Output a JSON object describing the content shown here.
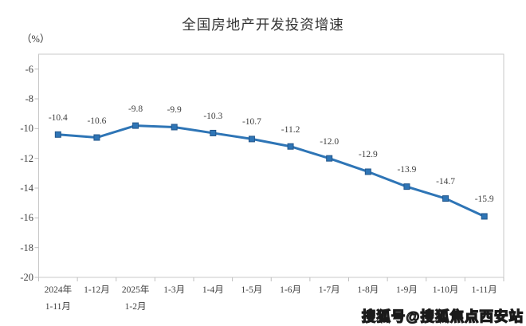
{
  "chart": {
    "title": "全国房地产开发投资增速",
    "unit_label": "（%）",
    "watermark": "搜狐号@搜狐焦点西安站",
    "colors": {
      "line": "#2E75B6",
      "marker_fill": "#2E75B6",
      "marker_stroke": "#24578B",
      "plot_border": "#C8C8C8",
      "tick": "#BFBFBF",
      "axis_text": "#404040",
      "title_text": "#333333"
    }
  },
  "chart_data": {
    "type": "line",
    "title": "全国房地产开发投资增速",
    "ylabel": "（%）",
    "categories": [
      "2024年 1-11月",
      "1-12月",
      "2025年 1-2月",
      "1-3月",
      "1-4月",
      "1-5月",
      "1-6月",
      "1-7月",
      "1-8月",
      "1-9月",
      "1-10月",
      "1-11月"
    ],
    "category_lines": [
      [
        "2024年",
        "1-11月"
      ],
      [
        "1-12月"
      ],
      [
        "2025年",
        "1-2月"
      ],
      [
        "1-3月"
      ],
      [
        "1-4月"
      ],
      [
        "1-5月"
      ],
      [
        "1-6月"
      ],
      [
        "1-7月"
      ],
      [
        "1-8月"
      ],
      [
        "1-9月"
      ],
      [
        "1-10月"
      ],
      [
        "1-11月"
      ]
    ],
    "values": [
      -10.4,
      -10.6,
      -9.8,
      -9.9,
      -10.3,
      -10.7,
      -11.2,
      -12.0,
      -12.9,
      -13.9,
      -14.7,
      -15.9
    ],
    "data_labels": [
      "-10.4",
      "-10.6",
      "-9.8",
      "-9.9",
      "-10.3",
      "-10.7",
      "-11.2",
      "-12.0",
      "-12.9",
      "-13.9",
      "-14.7",
      "-15.9"
    ],
    "y_ticks": [
      -6,
      -8,
      -10,
      -12,
      -14,
      -16,
      -18,
      -20
    ],
    "ylim": [
      -20,
      -5
    ],
    "grid": false,
    "legend": null,
    "marker": "square",
    "xlabel": ""
  }
}
